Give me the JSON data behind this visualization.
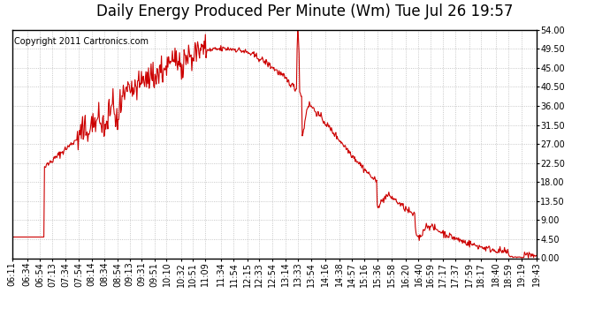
{
  "title": "Daily Energy Produced Per Minute (Wm) Tue Jul 26 19:57",
  "copyright": "Copyright 2011 Cartronics.com",
  "line_color": "#cc0000",
  "bg_color": "#ffffff",
  "plot_bg_color": "#ffffff",
  "grid_color": "#b0b0b0",
  "ylim": [
    0,
    54.0
  ],
  "yticks": [
    0.0,
    4.5,
    9.0,
    13.5,
    18.0,
    22.5,
    27.0,
    31.5,
    36.0,
    40.5,
    45.0,
    49.5,
    54.0
  ],
  "xtick_labels": [
    "06:11",
    "06:34",
    "06:54",
    "07:13",
    "07:34",
    "07:54",
    "08:14",
    "08:34",
    "08:54",
    "09:13",
    "09:31",
    "09:51",
    "10:10",
    "10:32",
    "10:51",
    "11:09",
    "11:34",
    "11:54",
    "12:15",
    "12:33",
    "12:54",
    "13:14",
    "13:33",
    "13:54",
    "14:16",
    "14:38",
    "14:57",
    "15:16",
    "15:36",
    "15:58",
    "16:20",
    "16:40",
    "16:59",
    "17:17",
    "17:37",
    "17:59",
    "18:17",
    "18:40",
    "18:59",
    "19:19",
    "19:43"
  ],
  "title_fontsize": 12,
  "copyright_fontsize": 7,
  "tick_fontsize": 7,
  "line_width": 0.8
}
